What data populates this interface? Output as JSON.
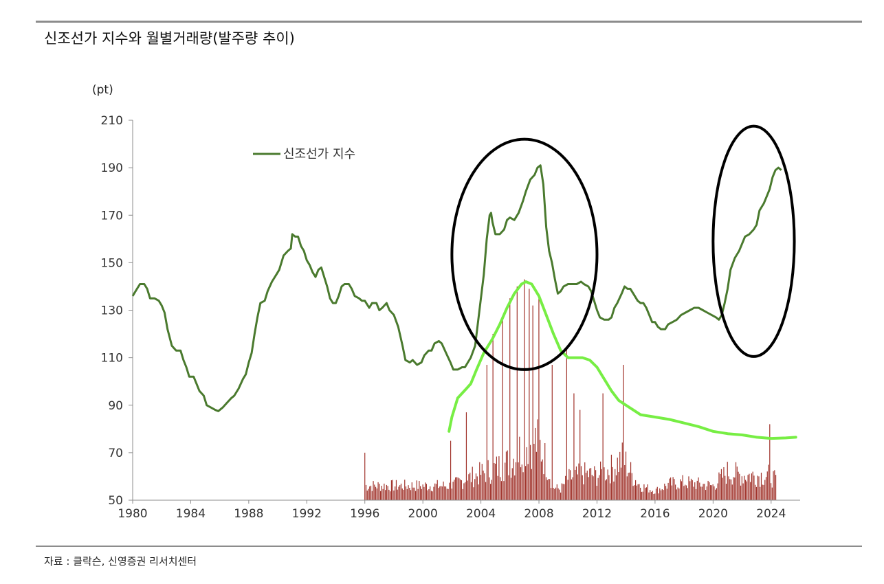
{
  "title": "신조선가 지수와 월별거래량(발주량 추이)",
  "source": "자료 : 클락슨, 신영증권 리서치센터",
  "colors": {
    "index_line": "#4a7a2e",
    "trend_line": "#77ee44",
    "volume_bars": "#a0322a",
    "rules": "#8c8c8c",
    "circles": "#000000"
  },
  "chart_data": {
    "type": "line",
    "ylabel": "(pt)",
    "ylim": [
      50,
      210
    ],
    "xlim": [
      1980,
      2026
    ],
    "yticks": [
      "210",
      "190",
      "170",
      "150",
      "130",
      "110",
      "90",
      "70",
      "50"
    ],
    "xticks": [
      "1980",
      "1984",
      "1988",
      "1992",
      "1996",
      "2000",
      "2004",
      "2008",
      "2012",
      "2016",
      "2020",
      "2024"
    ],
    "legend": {
      "entries": [
        "신조선가 지수"
      ],
      "placement": "top-left"
    },
    "grid": false,
    "series": [
      {
        "name": "신조선가 지수",
        "points": [
          [
            1980.0,
            136
          ],
          [
            1980.3,
            139
          ],
          [
            1980.5,
            141
          ],
          [
            1980.8,
            141
          ],
          [
            1981.0,
            139
          ],
          [
            1981.2,
            135
          ],
          [
            1981.5,
            135
          ],
          [
            1981.8,
            134
          ],
          [
            1982.0,
            132
          ],
          [
            1982.2,
            129
          ],
          [
            1982.4,
            122
          ],
          [
            1982.7,
            115
          ],
          [
            1983.0,
            113
          ],
          [
            1983.3,
            113
          ],
          [
            1983.5,
            109
          ],
          [
            1983.7,
            106
          ],
          [
            1983.9,
            102
          ],
          [
            1984.2,
            102
          ],
          [
            1984.4,
            99
          ],
          [
            1984.6,
            96
          ],
          [
            1984.9,
            94
          ],
          [
            1985.1,
            90
          ],
          [
            1985.4,
            89
          ],
          [
            1985.7,
            88
          ],
          [
            1985.9,
            87.5
          ],
          [
            1986.2,
            89
          ],
          [
            1986.5,
            91
          ],
          [
            1986.8,
            93
          ],
          [
            1987.0,
            94
          ],
          [
            1987.3,
            97
          ],
          [
            1987.6,
            101
          ],
          [
            1987.8,
            103
          ],
          [
            1988.0,
            108
          ],
          [
            1988.2,
            112
          ],
          [
            1988.4,
            120
          ],
          [
            1988.6,
            127
          ],
          [
            1988.8,
            133
          ],
          [
            1989.1,
            134
          ],
          [
            1989.3,
            138
          ],
          [
            1989.6,
            142
          ],
          [
            1989.9,
            145
          ],
          [
            1990.1,
            147
          ],
          [
            1990.4,
            153
          ],
          [
            1990.7,
            155
          ],
          [
            1990.9,
            156
          ],
          [
            1991.0,
            162
          ],
          [
            1991.2,
            161
          ],
          [
            1991.4,
            161
          ],
          [
            1991.6,
            157
          ],
          [
            1991.8,
            155
          ],
          [
            1992.0,
            151
          ],
          [
            1992.2,
            149
          ],
          [
            1992.4,
            146
          ],
          [
            1992.6,
            144
          ],
          [
            1992.8,
            147
          ],
          [
            1993.0,
            148
          ],
          [
            1993.2,
            144
          ],
          [
            1993.4,
            140
          ],
          [
            1993.6,
            135
          ],
          [
            1993.8,
            133
          ],
          [
            1994.0,
            133
          ],
          [
            1994.2,
            136
          ],
          [
            1994.4,
            140
          ],
          [
            1994.6,
            141
          ],
          [
            1994.9,
            141
          ],
          [
            1995.1,
            139
          ],
          [
            1995.3,
            136
          ],
          [
            1995.6,
            135
          ],
          [
            1995.8,
            134
          ],
          [
            1996.0,
            134
          ],
          [
            1996.3,
            131
          ],
          [
            1996.5,
            133
          ],
          [
            1996.8,
            133
          ],
          [
            1997.0,
            130
          ],
          [
            1997.2,
            131
          ],
          [
            1997.5,
            133
          ],
          [
            1997.7,
            130
          ],
          [
            1998.0,
            128
          ],
          [
            1998.3,
            123
          ],
          [
            1998.6,
            115
          ],
          [
            1998.8,
            109
          ],
          [
            1999.1,
            108
          ],
          [
            1999.3,
            109
          ],
          [
            1999.6,
            107
          ],
          [
            1999.9,
            108
          ],
          [
            2000.1,
            111
          ],
          [
            2000.4,
            113
          ],
          [
            2000.6,
            113
          ],
          [
            2000.8,
            116
          ],
          [
            2001.1,
            117
          ],
          [
            2001.3,
            116
          ],
          [
            2001.6,
            112
          ],
          [
            2001.9,
            108
          ],
          [
            2002.1,
            105
          ],
          [
            2002.4,
            105
          ],
          [
            2002.7,
            106
          ],
          [
            2002.9,
            106
          ],
          [
            2003.1,
            108
          ],
          [
            2003.3,
            110
          ],
          [
            2003.6,
            115
          ],
          [
            2003.8,
            125
          ],
          [
            2004.0,
            135
          ],
          [
            2004.2,
            145
          ],
          [
            2004.4,
            160
          ],
          [
            2004.6,
            170
          ],
          [
            2004.7,
            171
          ],
          [
            2004.8,
            167
          ],
          [
            2005.0,
            162
          ],
          [
            2005.3,
            162
          ],
          [
            2005.6,
            164
          ],
          [
            2005.8,
            168
          ],
          [
            2006.0,
            169
          ],
          [
            2006.3,
            168
          ],
          [
            2006.6,
            171
          ],
          [
            2006.9,
            176
          ],
          [
            2007.1,
            180
          ],
          [
            2007.4,
            185
          ],
          [
            2007.7,
            187
          ],
          [
            2007.9,
            190
          ],
          [
            2008.1,
            191
          ],
          [
            2008.3,
            183
          ],
          [
            2008.5,
            165
          ],
          [
            2008.7,
            155
          ],
          [
            2008.9,
            150
          ],
          [
            2009.1,
            143
          ],
          [
            2009.3,
            137
          ],
          [
            2009.5,
            138
          ],
          [
            2009.7,
            140
          ],
          [
            2010.0,
            141
          ],
          [
            2010.3,
            141
          ],
          [
            2010.6,
            141
          ],
          [
            2010.9,
            142
          ],
          [
            2011.1,
            141
          ],
          [
            2011.4,
            140
          ],
          [
            2011.6,
            138
          ],
          [
            2011.8,
            134
          ],
          [
            2012.0,
            130
          ],
          [
            2012.2,
            127
          ],
          [
            2012.5,
            126
          ],
          [
            2012.8,
            126
          ],
          [
            2013.0,
            127
          ],
          [
            2013.2,
            131
          ],
          [
            2013.4,
            133
          ],
          [
            2013.7,
            137
          ],
          [
            2013.9,
            140
          ],
          [
            2014.1,
            139
          ],
          [
            2014.3,
            139
          ],
          [
            2014.5,
            137
          ],
          [
            2014.8,
            134
          ],
          [
            2015.0,
            133
          ],
          [
            2015.2,
            133
          ],
          [
            2015.4,
            131
          ],
          [
            2015.6,
            128
          ],
          [
            2015.8,
            125
          ],
          [
            2016.0,
            125
          ],
          [
            2016.2,
            123
          ],
          [
            2016.4,
            122
          ],
          [
            2016.7,
            122
          ],
          [
            2016.9,
            124
          ],
          [
            2017.2,
            125
          ],
          [
            2017.5,
            126
          ],
          [
            2017.8,
            128
          ],
          [
            2018.1,
            129
          ],
          [
            2018.4,
            130
          ],
          [
            2018.7,
            131
          ],
          [
            2019.0,
            131
          ],
          [
            2019.3,
            130
          ],
          [
            2019.6,
            129
          ],
          [
            2019.9,
            128
          ],
          [
            2020.2,
            127
          ],
          [
            2020.4,
            126
          ],
          [
            2020.6,
            128
          ],
          [
            2020.8,
            133
          ],
          [
            2021.0,
            139
          ],
          [
            2021.2,
            147
          ],
          [
            2021.5,
            152
          ],
          [
            2021.8,
            155
          ],
          [
            2022.0,
            158
          ],
          [
            2022.2,
            161
          ],
          [
            2022.5,
            162
          ],
          [
            2022.8,
            164
          ],
          [
            2023.0,
            166
          ],
          [
            2023.2,
            172
          ],
          [
            2023.5,
            175
          ],
          [
            2023.7,
            178
          ],
          [
            2023.9,
            181
          ],
          [
            2024.1,
            186
          ],
          [
            2024.3,
            189
          ],
          [
            2024.5,
            190
          ],
          [
            2024.7,
            189
          ]
        ]
      }
    ],
    "annotations": {
      "trend_curve": [
        [
          2001.8,
          79
        ],
        [
          2002.0,
          85
        ],
        [
          2002.4,
          93
        ],
        [
          2003.0,
          97
        ],
        [
          2003.3,
          99
        ],
        [
          2003.7,
          105
        ],
        [
          2004.2,
          112
        ],
        [
          2004.8,
          118
        ],
        [
          2005.3,
          124
        ],
        [
          2005.8,
          131
        ],
        [
          2006.3,
          137
        ],
        [
          2006.8,
          141
        ],
        [
          2007.1,
          142
        ],
        [
          2007.5,
          141
        ],
        [
          2008.0,
          136
        ],
        [
          2008.5,
          128
        ],
        [
          2009.0,
          120
        ],
        [
          2009.5,
          113
        ],
        [
          2010.0,
          110
        ],
        [
          2010.5,
          110
        ],
        [
          2011.0,
          110
        ],
        [
          2011.5,
          109
        ],
        [
          2012.0,
          106
        ],
        [
          2012.5,
          101
        ],
        [
          2013.0,
          96
        ],
        [
          2013.5,
          92
        ],
        [
          2014.0,
          90
        ],
        [
          2014.5,
          88
        ],
        [
          2015.0,
          86
        ],
        [
          2016.0,
          85
        ],
        [
          2017.0,
          84
        ],
        [
          2018.0,
          82.5
        ],
        [
          2019.0,
          81
        ],
        [
          2020.0,
          79
        ],
        [
          2021.0,
          78
        ],
        [
          2022.0,
          77.5
        ],
        [
          2023.0,
          76.5
        ],
        [
          2024.0,
          76
        ],
        [
          2025.0,
          76.2
        ],
        [
          2025.7,
          76.5
        ]
      ],
      "circles": [
        {
          "cx": 2007.0,
          "cy": 153.5,
          "rx": 5.0,
          "ry": 48.5
        },
        {
          "cx": 2022.8,
          "cy": 159.0,
          "rx": 2.8,
          "ry": 48.5
        }
      ]
    },
    "volume_bars": {
      "start": 1996.0,
      "end": 2024.4,
      "step": 0.0833,
      "peaks": [
        [
          1996.0,
          70
        ],
        [
          2001.9,
          75
        ],
        [
          2003.0,
          87
        ],
        [
          2004.4,
          107
        ],
        [
          2004.8,
          120
        ],
        [
          2005.5,
          126
        ],
        [
          2006.0,
          135
        ],
        [
          2006.5,
          140
        ],
        [
          2007.0,
          143
        ],
        [
          2007.3,
          139
        ],
        [
          2007.6,
          132
        ],
        [
          2008.0,
          135
        ],
        [
          2008.9,
          107
        ],
        [
          2009.9,
          114
        ],
        [
          2010.4,
          95
        ],
        [
          2010.8,
          88
        ],
        [
          2012.4,
          95
        ],
        [
          2013.8,
          107
        ],
        [
          2023.9,
          82
        ]
      ],
      "envelope": [
        [
          1996.0,
          58
        ],
        [
          1998.0,
          58
        ],
        [
          2000.0,
          58
        ],
        [
          2002.0,
          58
        ],
        [
          2003.0,
          62
        ],
        [
          2004.0,
          65
        ],
        [
          2005.0,
          68
        ],
        [
          2006.0,
          72
        ],
        [
          2006.5,
          76
        ],
        [
          2007.0,
          83
        ],
        [
          2007.5,
          85
        ],
        [
          2008.0,
          82
        ],
        [
          2008.5,
          72
        ],
        [
          2009.0,
          57
        ],
        [
          2009.5,
          56
        ],
        [
          2010.0,
          62
        ],
        [
          2011.0,
          65
        ],
        [
          2012.0,
          64
        ],
        [
          2013.0,
          68
        ],
        [
          2013.8,
          74
        ],
        [
          2014.5,
          63
        ],
        [
          2015.0,
          58
        ],
        [
          2016.0,
          55
        ],
        [
          2017.0,
          59
        ],
        [
          2018.0,
          60
        ],
        [
          2019.0,
          59
        ],
        [
          2020.0,
          58
        ],
        [
          2021.0,
          66
        ],
        [
          2022.0,
          64
        ],
        [
          2023.0,
          64
        ],
        [
          2024.0,
          64
        ],
        [
          2024.4,
          60
        ]
      ]
    }
  }
}
